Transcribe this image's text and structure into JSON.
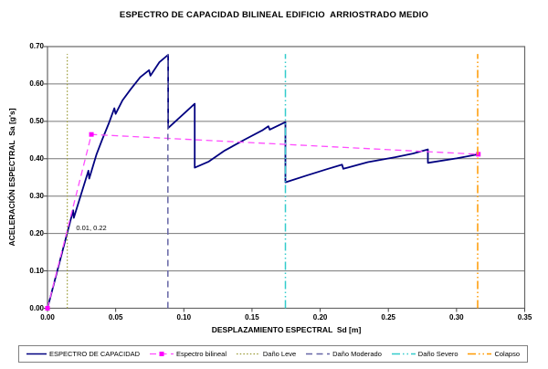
{
  "chart_data": {
    "type": "line",
    "title": "ESPECTRO DE CAPACIDAD BILINEAL EDIFICIO  ARRIOSTRADO MEDIO",
    "xlabel": "DESPLAZAMIENTO ESPECTRAL  Sd [m]",
    "ylabel": "ACELERACIÓN ESPECTRAL  Sa [g's]",
    "xlim": [
      0,
      0.35
    ],
    "ylim": [
      0,
      0.7
    ],
    "x_ticks": [
      0,
      0.05,
      0.1,
      0.15,
      0.2,
      0.25,
      0.3,
      0.35
    ],
    "x_tick_labels": [
      "0.00",
      "0.05",
      "0.10",
      "0.15",
      "0.20",
      "0.25",
      "0.30",
      "0.35"
    ],
    "y_ticks": [
      0,
      0.1,
      0.2,
      0.3,
      0.4,
      0.5,
      0.6,
      0.7
    ],
    "y_tick_labels": [
      "0.00",
      "0.10",
      "0.20",
      "0.30",
      "0.40",
      "0.50",
      "0.60",
      "0.70"
    ],
    "grid": "horizontal",
    "grid_color": "#777777",
    "border_color": "#666666",
    "legend_position": "bottom",
    "annotation": {
      "text": "0.01, 0.22",
      "x": 0.021,
      "y": 0.215
    },
    "series": [
      {
        "name": "ESPECTRO DE CAPACIDAD",
        "kind": "line",
        "color": "#000080",
        "style": "solid",
        "width": 1.8,
        "points": [
          [
            0,
            0
          ],
          [
            0.0188,
            0.262
          ],
          [
            0.0193,
            0.242
          ],
          [
            0.03,
            0.368
          ],
          [
            0.0306,
            0.347
          ],
          [
            0.036,
            0.412
          ],
          [
            0.04,
            0.45
          ],
          [
            0.045,
            0.495
          ],
          [
            0.049,
            0.535
          ],
          [
            0.05,
            0.52
          ],
          [
            0.055,
            0.556
          ],
          [
            0.061,
            0.586
          ],
          [
            0.068,
            0.618
          ],
          [
            0.0745,
            0.637
          ],
          [
            0.0755,
            0.622
          ],
          [
            0.082,
            0.658
          ],
          [
            0.0885,
            0.678
          ],
          [
            0.0885,
            0.482
          ],
          [
            0.108,
            0.547
          ],
          [
            0.108,
            0.376
          ],
          [
            0.118,
            0.392
          ],
          [
            0.13,
            0.422
          ],
          [
            0.145,
            0.452
          ],
          [
            0.158,
            0.477
          ],
          [
            0.162,
            0.487
          ],
          [
            0.163,
            0.478
          ],
          [
            0.1745,
            0.498
          ],
          [
            0.1745,
            0.337
          ],
          [
            0.19,
            0.355
          ],
          [
            0.205,
            0.372
          ],
          [
            0.216,
            0.384
          ],
          [
            0.217,
            0.373
          ],
          [
            0.235,
            0.391
          ],
          [
            0.255,
            0.404
          ],
          [
            0.268,
            0.414
          ],
          [
            0.279,
            0.425
          ],
          [
            0.279,
            0.389
          ],
          [
            0.3,
            0.401
          ],
          [
            0.316,
            0.412
          ]
        ]
      },
      {
        "name": "Espectro bilineal",
        "kind": "line",
        "color": "#FF4DFF",
        "marker_color": "#FF00FF",
        "style": "dash",
        "marker": "square",
        "width": 1.3,
        "points": [
          [
            0,
            0
          ],
          [
            0.0322,
            0.465
          ],
          [
            0.316,
            0.412
          ]
        ]
      },
      {
        "name": "Daño Leve",
        "kind": "vline",
        "color": "#999933",
        "style": "dot",
        "width": 1.2,
        "x": 0.0145,
        "y0": 0,
        "y1": 0.68
      },
      {
        "name": "Daño Moderado",
        "kind": "vline",
        "color": "#6666A6",
        "style": "dash",
        "width": 1.5,
        "x": 0.0883,
        "y0": 0,
        "y1": 0.68
      },
      {
        "name": "Daño Severo",
        "kind": "vline",
        "color": "#33CCCC",
        "style": "dashdotdot",
        "width": 1.5,
        "x": 0.1745,
        "y0": 0,
        "y1": 0.68
      },
      {
        "name": "Colapso",
        "kind": "vline",
        "color": "#FF9900",
        "style": "dashdotdot",
        "width": 1.5,
        "x": 0.3155,
        "y0": 0,
        "y1": 0.68
      }
    ]
  }
}
